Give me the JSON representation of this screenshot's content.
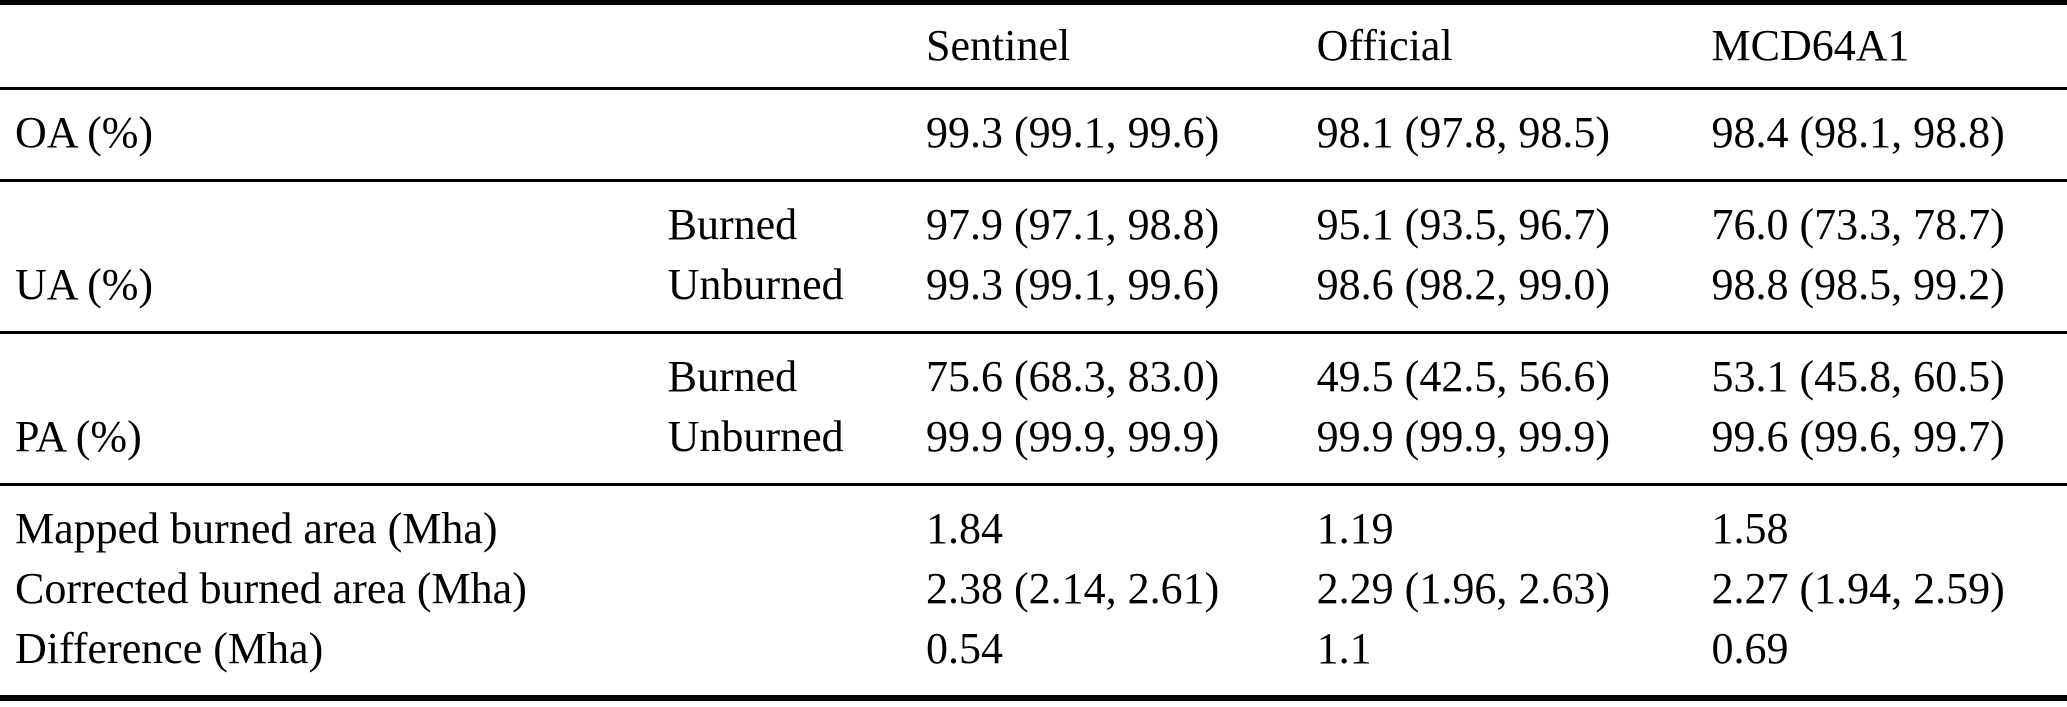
{
  "page": {
    "background": "#ffffff",
    "text_color": "#000000",
    "rule_color": "#000000"
  },
  "table": {
    "column_headers": [
      "Sentinel",
      "Official",
      "MCD64A1"
    ],
    "rows": {
      "oa": {
        "label": "OA (%)",
        "sentinel": "99.3 (99.1, 99.6)",
        "official": "98.1 (97.8, 98.5)",
        "mcd64a1": "98.4 (98.1, 98.8)"
      },
      "ua_burned": {
        "sublabel": "Burned",
        "sentinel": "97.9 (97.1, 98.8)",
        "official": "95.1 (93.5, 96.7)",
        "mcd64a1": "76.0 (73.3, 78.7)"
      },
      "ua_unburned": {
        "label": "UA (%)",
        "sublabel": "Unburned",
        "sentinel": "99.3 (99.1, 99.6)",
        "official": "98.6 (98.2, 99.0)",
        "mcd64a1": "98.8 (98.5, 99.2)"
      },
      "pa_burned": {
        "sublabel": "Burned",
        "sentinel": "75.6 (68.3, 83.0)",
        "official": "49.5 (42.5, 56.6)",
        "mcd64a1": "53.1 (45.8, 60.5)"
      },
      "pa_unburned": {
        "label": "PA (%)",
        "sublabel": "Unburned",
        "sentinel": "99.9 (99.9, 99.9)",
        "official": "99.9 (99.9, 99.9)",
        "mcd64a1": "99.6 (99.6, 99.7)"
      },
      "mapped": {
        "label": "Mapped burned area (Mha)",
        "sentinel": "1.84",
        "official": "1.19",
        "mcd64a1": "1.58"
      },
      "corrected": {
        "label": "Corrected burned area (Mha)",
        "sentinel": "2.38 (2.14, 2.61)",
        "official": "2.29 (1.96, 2.63)",
        "mcd64a1": "2.27 (1.94, 2.59)"
      },
      "difference": {
        "label": "Difference (Mha)",
        "sentinel": "0.54",
        "official": "1.1",
        "mcd64a1": "0.69"
      }
    }
  }
}
